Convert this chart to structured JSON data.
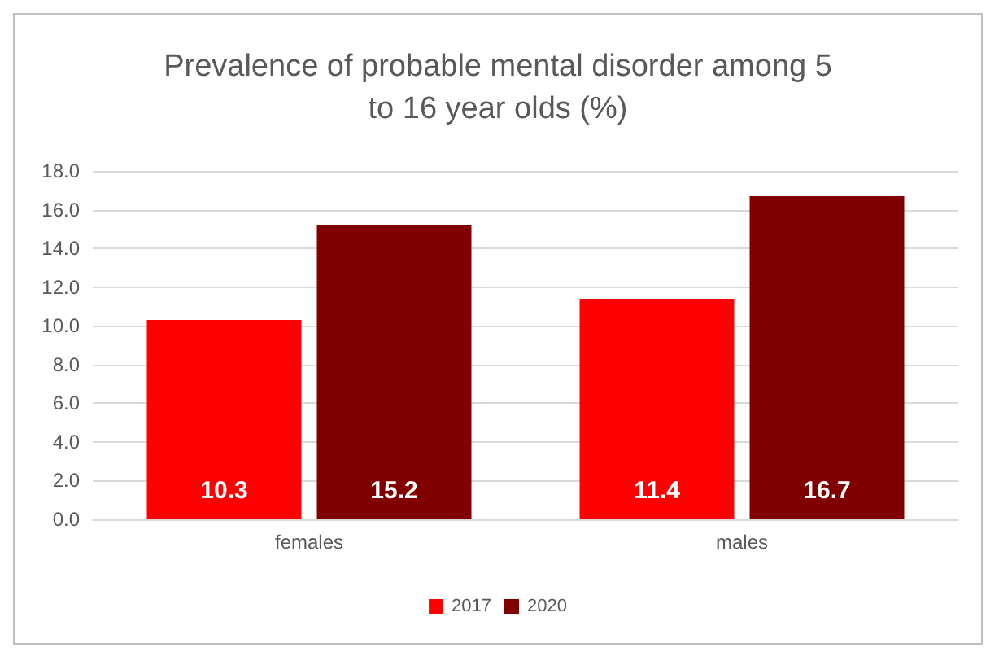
{
  "chart_data": {
    "type": "bar",
    "title": "Prevalence of probable mental disorder among 5\nto 16 year olds (%)",
    "categories": [
      "females",
      "males"
    ],
    "series": [
      {
        "name": "2017",
        "color": "#ff0000",
        "values": [
          10.3,
          11.4
        ]
      },
      {
        "name": "2020",
        "color": "#800000",
        "values": [
          15.2,
          16.7
        ]
      }
    ],
    "ylim": [
      0,
      18
    ],
    "yticks": [
      {
        "value": 0,
        "label": "0.0"
      },
      {
        "value": 2,
        "label": "2.0"
      },
      {
        "value": 4,
        "label": "4.0"
      },
      {
        "value": 6,
        "label": "6.0"
      },
      {
        "value": 8,
        "label": "8.0"
      },
      {
        "value": 10,
        "label": "10.0"
      },
      {
        "value": 12,
        "label": "12.0"
      },
      {
        "value": 14,
        "label": "14.0"
      },
      {
        "value": 16,
        "label": "16.0"
      },
      {
        "value": 18,
        "label": "18.0"
      }
    ],
    "grid": true,
    "legend": "bottom",
    "data_labels": true
  }
}
